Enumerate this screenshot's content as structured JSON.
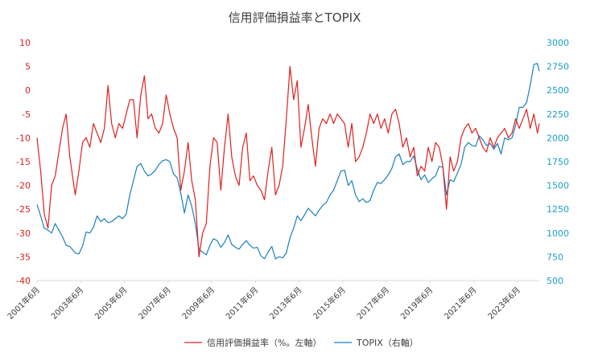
{
  "chart_data": {
    "type": "line",
    "title": "信用評価損益率とTOPIX",
    "xlabel": "",
    "y_left": {
      "ylim": [
        -40,
        10
      ],
      "ticks": [
        "10",
        "5",
        "0",
        "-5",
        "-10",
        "-15",
        "-20",
        "-25",
        "-30",
        "-35",
        "-40"
      ]
    },
    "y_right": {
      "ylim": [
        500,
        3000
      ],
      "ticks": [
        "3000",
        "2750",
        "2500",
        "2250",
        "2000",
        "1750",
        "1500",
        "1250",
        "1000",
        "750",
        "500"
      ]
    },
    "x_ticks": [
      "2001年6月",
      "2003年6月",
      "2005年6月",
      "2007年6月",
      "2009年6月",
      "2011年6月",
      "2013年6月",
      "2015年6月",
      "2017年6月",
      "2019年6月",
      "2021年6月",
      "2023年6月"
    ],
    "x_range": [
      "2001-06",
      "2024-06"
    ],
    "grid": false,
    "legend_position": "bottom",
    "colors": {
      "left_series": "#e02020",
      "right_series": "#1a7fc0",
      "left_axis": "#e02020",
      "right_axis": "#1aa0c8"
    },
    "series": [
      {
        "name": "信用評価損益率（%。左軸）",
        "axis": "left",
        "points": [
          [
            "2001-06",
            -10
          ],
          [
            "2001-08",
            -17
          ],
          [
            "2001-10",
            -26
          ],
          [
            "2001-12",
            -29
          ],
          [
            "2002-02",
            -20
          ],
          [
            "2002-04",
            -18
          ],
          [
            "2002-06",
            -13
          ],
          [
            "2002-08",
            -8
          ],
          [
            "2002-10",
            -5
          ],
          [
            "2002-12",
            -14
          ],
          [
            "2003-03",
            -22
          ],
          [
            "2003-05",
            -17
          ],
          [
            "2003-07",
            -11
          ],
          [
            "2003-09",
            -10
          ],
          [
            "2003-11",
            -12
          ],
          [
            "2004-01",
            -7
          ],
          [
            "2004-03",
            -9
          ],
          [
            "2004-05",
            -11
          ],
          [
            "2004-07",
            -8
          ],
          [
            "2004-09",
            1
          ],
          [
            "2004-11",
            -7
          ],
          [
            "2005-01",
            -10
          ],
          [
            "2005-03",
            -7
          ],
          [
            "2005-05",
            -8
          ],
          [
            "2005-07",
            -5
          ],
          [
            "2005-09",
            -2
          ],
          [
            "2005-11",
            -2
          ],
          [
            "2006-01",
            -10
          ],
          [
            "2006-03",
            -1
          ],
          [
            "2006-05",
            3
          ],
          [
            "2006-07",
            -6
          ],
          [
            "2006-09",
            -5
          ],
          [
            "2006-11",
            -8
          ],
          [
            "2007-01",
            -9
          ],
          [
            "2007-03",
            -7
          ],
          [
            "2007-05",
            -1
          ],
          [
            "2007-07",
            -5
          ],
          [
            "2007-09",
            -8
          ],
          [
            "2007-11",
            -10
          ],
          [
            "2008-01",
            -21
          ],
          [
            "2008-03",
            -17
          ],
          [
            "2008-05",
            -11
          ],
          [
            "2008-07",
            -19
          ],
          [
            "2008-09",
            -23
          ],
          [
            "2008-11",
            -35
          ],
          [
            "2009-01",
            -30
          ],
          [
            "2009-03",
            -28
          ],
          [
            "2009-05",
            -16
          ],
          [
            "2009-07",
            -10
          ],
          [
            "2009-09",
            -11
          ],
          [
            "2009-11",
            -21
          ],
          [
            "2010-01",
            -12
          ],
          [
            "2010-03",
            -5
          ],
          [
            "2010-05",
            -14
          ],
          [
            "2010-07",
            -18
          ],
          [
            "2010-09",
            -20
          ],
          [
            "2010-11",
            -12
          ],
          [
            "2011-01",
            -9
          ],
          [
            "2011-03",
            -19
          ],
          [
            "2011-05",
            -18
          ],
          [
            "2011-07",
            -20
          ],
          [
            "2011-09",
            -21
          ],
          [
            "2011-11",
            -23
          ],
          [
            "2012-01",
            -17
          ],
          [
            "2012-03",
            -12
          ],
          [
            "2012-05",
            -22
          ],
          [
            "2012-07",
            -20
          ],
          [
            "2012-09",
            -16
          ],
          [
            "2012-11",
            -6
          ],
          [
            "2013-01",
            5
          ],
          [
            "2013-03",
            -2
          ],
          [
            "2013-05",
            2
          ],
          [
            "2013-07",
            -12
          ],
          [
            "2013-09",
            -8
          ],
          [
            "2013-11",
            -3
          ],
          [
            "2014-01",
            -10
          ],
          [
            "2014-03",
            -16
          ],
          [
            "2014-05",
            -8
          ],
          [
            "2014-07",
            -6
          ],
          [
            "2014-09",
            -7
          ],
          [
            "2014-11",
            -5
          ],
          [
            "2015-01",
            -7
          ],
          [
            "2015-03",
            -5
          ],
          [
            "2015-05",
            -6
          ],
          [
            "2015-07",
            -7
          ],
          [
            "2015-09",
            -12
          ],
          [
            "2015-11",
            -7
          ],
          [
            "2016-01",
            -15
          ],
          [
            "2016-03",
            -14
          ],
          [
            "2016-05",
            -12
          ],
          [
            "2016-07",
            -9
          ],
          [
            "2016-09",
            -5
          ],
          [
            "2016-11",
            -7
          ],
          [
            "2017-01",
            -5
          ],
          [
            "2017-03",
            -8
          ],
          [
            "2017-05",
            -6
          ],
          [
            "2017-07",
            -9
          ],
          [
            "2017-09",
            -5
          ],
          [
            "2017-11",
            -4
          ],
          [
            "2018-01",
            -7
          ],
          [
            "2018-03",
            -12
          ],
          [
            "2018-05",
            -10
          ],
          [
            "2018-07",
            -14
          ],
          [
            "2018-09",
            -12
          ],
          [
            "2018-11",
            -18
          ],
          [
            "2019-01",
            -16
          ],
          [
            "2019-03",
            -17
          ],
          [
            "2019-05",
            -12
          ],
          [
            "2019-07",
            -15
          ],
          [
            "2019-09",
            -11
          ],
          [
            "2019-11",
            -12
          ],
          [
            "2020-01",
            -16
          ],
          [
            "2020-03",
            -25
          ],
          [
            "2020-05",
            -14
          ],
          [
            "2020-07",
            -17
          ],
          [
            "2020-09",
            -15
          ],
          [
            "2020-11",
            -10
          ],
          [
            "2021-01",
            -8
          ],
          [
            "2021-03",
            -7
          ],
          [
            "2021-05",
            -9
          ],
          [
            "2021-07",
            -8
          ],
          [
            "2021-09",
            -10
          ],
          [
            "2021-11",
            -12
          ],
          [
            "2022-01",
            -13
          ],
          [
            "2022-03",
            -10
          ],
          [
            "2022-05",
            -12
          ],
          [
            "2022-07",
            -10
          ],
          [
            "2022-09",
            -9
          ],
          [
            "2022-11",
            -8
          ],
          [
            "2023-01",
            -10
          ],
          [
            "2023-03",
            -9
          ],
          [
            "2023-05",
            -6
          ],
          [
            "2023-07",
            -8
          ],
          [
            "2023-09",
            -6
          ],
          [
            "2023-11",
            -4
          ],
          [
            "2024-01",
            -8
          ],
          [
            "2024-03",
            -5
          ],
          [
            "2024-05",
            -9
          ],
          [
            "2024-06",
            -7
          ]
        ]
      },
      {
        "name": "TOPIX（右軸）",
        "axis": "right",
        "points": [
          [
            "2001-06",
            1300
          ],
          [
            "2001-08",
            1180
          ],
          [
            "2001-10",
            1050
          ],
          [
            "2001-12",
            1030
          ],
          [
            "2002-02",
            1000
          ],
          [
            "2002-04",
            1100
          ],
          [
            "2002-06",
            1030
          ],
          [
            "2002-08",
            960
          ],
          [
            "2002-10",
            870
          ],
          [
            "2002-12",
            860
          ],
          [
            "2003-03",
            790
          ],
          [
            "2003-05",
            780
          ],
          [
            "2003-07",
            860
          ],
          [
            "2003-09",
            1010
          ],
          [
            "2003-11",
            1000
          ],
          [
            "2004-01",
            1060
          ],
          [
            "2004-03",
            1180
          ],
          [
            "2004-05",
            1120
          ],
          [
            "2004-07",
            1150
          ],
          [
            "2004-09",
            1110
          ],
          [
            "2004-11",
            1120
          ],
          [
            "2005-01",
            1150
          ],
          [
            "2005-03",
            1180
          ],
          [
            "2005-05",
            1150
          ],
          [
            "2005-07",
            1200
          ],
          [
            "2005-09",
            1400
          ],
          [
            "2005-11",
            1550
          ],
          [
            "2006-01",
            1700
          ],
          [
            "2006-03",
            1730
          ],
          [
            "2006-05",
            1650
          ],
          [
            "2006-07",
            1600
          ],
          [
            "2006-09",
            1620
          ],
          [
            "2006-11",
            1660
          ],
          [
            "2007-01",
            1720
          ],
          [
            "2007-03",
            1760
          ],
          [
            "2007-05",
            1770
          ],
          [
            "2007-07",
            1750
          ],
          [
            "2007-09",
            1620
          ],
          [
            "2007-11",
            1580
          ],
          [
            "2008-01",
            1420
          ],
          [
            "2008-03",
            1210
          ],
          [
            "2008-05",
            1400
          ],
          [
            "2008-07",
            1280
          ],
          [
            "2008-09",
            1100
          ],
          [
            "2008-11",
            830
          ],
          [
            "2009-01",
            800
          ],
          [
            "2009-03",
            770
          ],
          [
            "2009-05",
            870
          ],
          [
            "2009-07",
            940
          ],
          [
            "2009-09",
            920
          ],
          [
            "2009-11",
            850
          ],
          [
            "2010-01",
            900
          ],
          [
            "2010-03",
            980
          ],
          [
            "2010-05",
            880
          ],
          [
            "2010-07",
            850
          ],
          [
            "2010-09",
            830
          ],
          [
            "2010-11",
            880
          ],
          [
            "2011-01",
            920
          ],
          [
            "2011-03",
            870
          ],
          [
            "2011-05",
            840
          ],
          [
            "2011-07",
            850
          ],
          [
            "2011-09",
            760
          ],
          [
            "2011-11",
            730
          ],
          [
            "2012-01",
            800
          ],
          [
            "2012-03",
            860
          ],
          [
            "2012-05",
            730
          ],
          [
            "2012-07",
            750
          ],
          [
            "2012-09",
            740
          ],
          [
            "2012-11",
            790
          ],
          [
            "2013-01",
            950
          ],
          [
            "2013-03",
            1050
          ],
          [
            "2013-05",
            1180
          ],
          [
            "2013-07",
            1130
          ],
          [
            "2013-09",
            1190
          ],
          [
            "2013-11",
            1260
          ],
          [
            "2014-01",
            1220
          ],
          [
            "2014-03",
            1180
          ],
          [
            "2014-05",
            1240
          ],
          [
            "2014-07",
            1290
          ],
          [
            "2014-09",
            1320
          ],
          [
            "2014-11",
            1400
          ],
          [
            "2015-01",
            1450
          ],
          [
            "2015-03",
            1550
          ],
          [
            "2015-05",
            1650
          ],
          [
            "2015-07",
            1660
          ],
          [
            "2015-09",
            1500
          ],
          [
            "2015-11",
            1550
          ],
          [
            "2016-01",
            1400
          ],
          [
            "2016-03",
            1330
          ],
          [
            "2016-05",
            1360
          ],
          [
            "2016-07",
            1320
          ],
          [
            "2016-09",
            1340
          ],
          [
            "2016-11",
            1450
          ],
          [
            "2017-01",
            1530
          ],
          [
            "2017-03",
            1520
          ],
          [
            "2017-05",
            1560
          ],
          [
            "2017-07",
            1610
          ],
          [
            "2017-09",
            1680
          ],
          [
            "2017-11",
            1800
          ],
          [
            "2018-01",
            1830
          ],
          [
            "2018-03",
            1720
          ],
          [
            "2018-05",
            1750
          ],
          [
            "2018-07",
            1750
          ],
          [
            "2018-09",
            1810
          ],
          [
            "2018-11",
            1670
          ],
          [
            "2019-01",
            1560
          ],
          [
            "2019-03",
            1610
          ],
          [
            "2019-05",
            1530
          ],
          [
            "2019-07",
            1570
          ],
          [
            "2019-09",
            1600
          ],
          [
            "2019-11",
            1700
          ],
          [
            "2020-01",
            1690
          ],
          [
            "2020-03",
            1400
          ],
          [
            "2020-05",
            1560
          ],
          [
            "2020-07",
            1540
          ],
          [
            "2020-09",
            1630
          ],
          [
            "2020-11",
            1720
          ],
          [
            "2021-01",
            1900
          ],
          [
            "2021-03",
            1950
          ],
          [
            "2021-05",
            1920
          ],
          [
            "2021-07",
            1910
          ],
          [
            "2021-09",
            2020
          ],
          [
            "2021-11",
            1980
          ],
          [
            "2022-01",
            1920
          ],
          [
            "2022-03",
            1940
          ],
          [
            "2022-05",
            1880
          ],
          [
            "2022-07",
            1940
          ],
          [
            "2022-09",
            1830
          ],
          [
            "2022-11",
            2000
          ],
          [
            "2023-01",
            1980
          ],
          [
            "2023-03",
            2000
          ],
          [
            "2023-05",
            2130
          ],
          [
            "2023-07",
            2320
          ],
          [
            "2023-09",
            2320
          ],
          [
            "2023-11",
            2370
          ],
          [
            "2024-01",
            2550
          ],
          [
            "2024-03",
            2770
          ],
          [
            "2024-05",
            2780
          ],
          [
            "2024-06",
            2700
          ]
        ]
      }
    ]
  }
}
